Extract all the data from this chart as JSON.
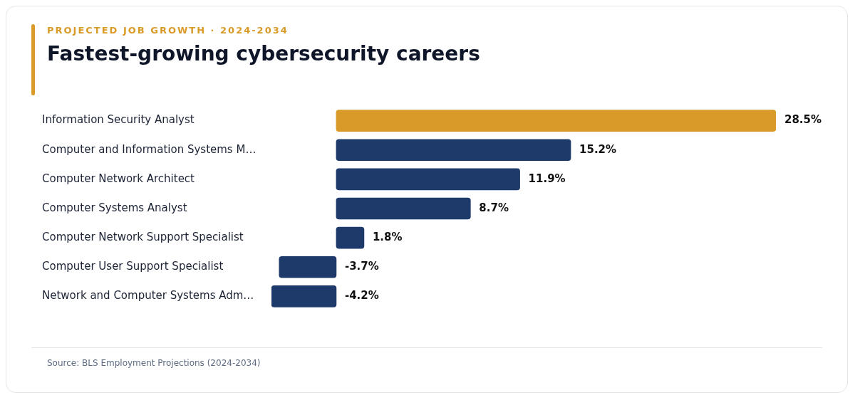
{
  "chart_data": {
    "type": "bar",
    "orientation": "horizontal",
    "subtitle": "PROJECTED JOB GROWTH · 2024-2034",
    "title": "Fastest-growing cybersecurity careers",
    "categories": [
      "Information Security Analyst",
      "Computer and Information Systems M…",
      "Computer Network Architect",
      "Computer Systems Analyst",
      "Computer Network Support Specialist",
      "Computer User Support Specialist",
      "Network and Computer Systems Adm…"
    ],
    "values": [
      28.5,
      15.2,
      11.9,
      8.7,
      1.8,
      -3.7,
      -4.2
    ],
    "value_labels": [
      "28.5%",
      "15.2%",
      "11.9%",
      "8.7%",
      "1.8%",
      "-3.7%",
      "-4.2%"
    ],
    "colors": [
      "#d99a27",
      "#1e3a6b",
      "#1e3a6b",
      "#1e3a6b",
      "#1e3a6b",
      "#1e3a6b",
      "#1e3a6b"
    ],
    "grid": false,
    "legend": false,
    "annotations": [
      "Source: BLS Employment Projections (2024-2034)"
    ]
  }
}
